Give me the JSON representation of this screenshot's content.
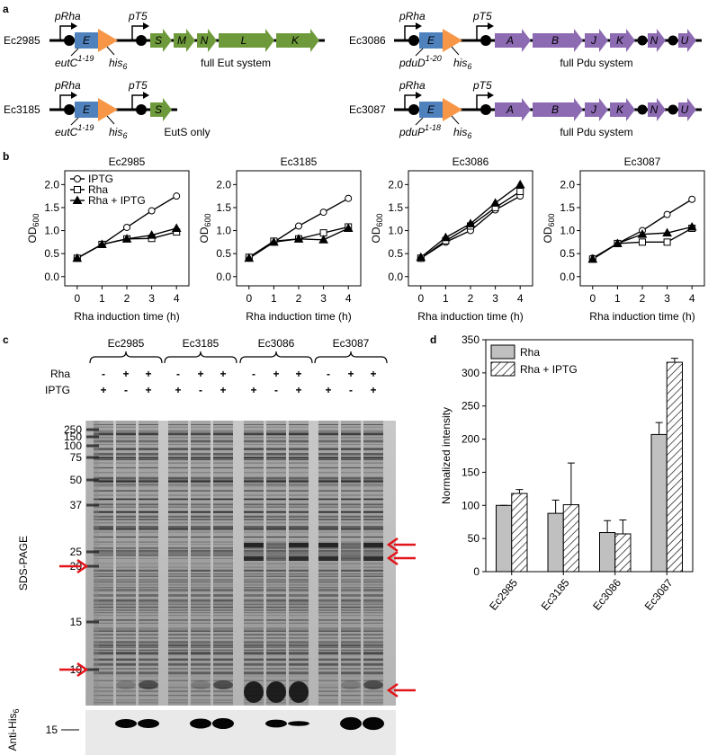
{
  "figure": {
    "panel_labels": [
      "a",
      "b",
      "c",
      "d"
    ],
    "constructs": [
      {
        "strain": "Ec2985",
        "promoter1": "pRha",
        "fusion_gene": "E",
        "fusion": "eutC",
        "fusion_sup": "1-19",
        "tag": "his",
        "tag_sub": "6",
        "promoter2": "pT5",
        "genes": [
          "S",
          "M",
          "N",
          "L",
          "K"
        ],
        "caption": "full  Eut system",
        "gene_color": "#6f9a3c"
      },
      {
        "strain": "Ec3185",
        "promoter1": "pRha",
        "fusion_gene": "E",
        "fusion": "eutC",
        "fusion_sup": "1-19",
        "tag": "his",
        "tag_sub": "6",
        "promoter2": "pT5",
        "genes": [
          "S"
        ],
        "caption": "EutS only",
        "gene_color": "#6f9a3c"
      },
      {
        "strain": "Ec3086",
        "promoter1": "pRha",
        "fusion_gene": "E",
        "fusion": "pduD",
        "fusion_sup": "1-20",
        "tag": "his",
        "tag_sub": "6",
        "promoter2": "pT5",
        "genes": [
          "A",
          "B",
          "J",
          "K",
          "N",
          "U"
        ],
        "caption": "full  Pdu system",
        "gene_color": "#8d6bb3"
      },
      {
        "strain": "Ec3087",
        "promoter1": "pRha",
        "fusion_gene": "E",
        "fusion": "pduP",
        "fusion_sup": "1-18",
        "tag": "his",
        "tag_sub": "6",
        "promoter2": "pT5",
        "genes": [
          "A",
          "B",
          "J",
          "K",
          "N",
          "U"
        ],
        "caption": "full  Pdu system",
        "gene_color": "#8d6bb3"
      }
    ]
  },
  "chart_data": [
    {
      "type": "line",
      "title": "Ec2985",
      "xlabel": "Rha induction time (h)",
      "ylabel": "OD",
      "ylabel_sub": "600",
      "legend": "upper left",
      "x": [
        0,
        1,
        2,
        3,
        4
      ],
      "xlim": [
        -0.5,
        4.5
      ],
      "xticks": [
        0,
        1,
        2,
        3,
        4
      ],
      "ylim": [
        -0.2,
        2.3
      ],
      "yticks": [
        {
          "value": 0,
          "label": "0.0"
        },
        {
          "value": 0.5,
          "label": "0.5"
        },
        {
          "value": 1,
          "label": "1.0"
        },
        {
          "value": 1.5,
          "label": "1.5"
        },
        {
          "value": 2,
          "label": "2.0"
        }
      ],
      "series": [
        {
          "name": "IPTG",
          "color": "#000000",
          "marker": "circle-open",
          "values": [
            0.4,
            0.7,
            1.07,
            1.43,
            1.75
          ]
        },
        {
          "name": "Rha",
          "color": "#000000",
          "marker": "square-open",
          "values": [
            0.4,
            0.7,
            0.82,
            0.83,
            0.97
          ]
        },
        {
          "name": "Rha + IPTG",
          "color": "#000000",
          "marker": "triangle-filled",
          "values": [
            0.4,
            0.7,
            0.82,
            0.9,
            1.05
          ]
        }
      ]
    },
    {
      "type": "line",
      "title": "Ec3185",
      "xlabel": "Rha induction time (h)",
      "ylabel": "OD",
      "ylabel_sub": "600",
      "x": [
        0,
        1,
        2,
        3,
        4
      ],
      "xlim": [
        -0.5,
        4.5
      ],
      "xticks": [
        0,
        1,
        2,
        3,
        4
      ],
      "ylim": [
        -0.2,
        2.3
      ],
      "yticks": [
        {
          "value": 0,
          "label": "0.0"
        },
        {
          "value": 0.5,
          "label": "0.5"
        },
        {
          "value": 1,
          "label": "1.0"
        },
        {
          "value": 1.5,
          "label": "1.5"
        },
        {
          "value": 2,
          "label": "2.0"
        }
      ],
      "series": [
        {
          "color": "#000000",
          "marker": "circle-open",
          "values": [
            0.4,
            0.75,
            1.1,
            1.4,
            1.7
          ]
        },
        {
          "color": "#000000",
          "marker": "square-open",
          "values": [
            0.42,
            0.77,
            0.82,
            0.95,
            1.08
          ]
        },
        {
          "color": "#000000",
          "marker": "triangle-filled",
          "values": [
            0.4,
            0.75,
            0.82,
            0.8,
            1.05
          ]
        }
      ]
    },
    {
      "type": "line",
      "title": "Ec3086",
      "xlabel": "Rha induction time (h)",
      "ylabel": "OD",
      "ylabel_sub": "600",
      "x": [
        0,
        1,
        2,
        3,
        4
      ],
      "xlim": [
        -0.5,
        4.5
      ],
      "xticks": [
        0,
        1,
        2,
        3,
        4
      ],
      "ylim": [
        -0.2,
        2.3
      ],
      "yticks": [
        {
          "value": 0,
          "label": "0.0"
        },
        {
          "value": 0.5,
          "label": "0.5"
        },
        {
          "value": 1,
          "label": "1.0"
        },
        {
          "value": 1.5,
          "label": "1.5"
        },
        {
          "value": 2,
          "label": "2.0"
        }
      ],
      "series": [
        {
          "color": "#000000",
          "marker": "circle-open",
          "values": [
            0.4,
            0.75,
            1.0,
            1.45,
            1.75
          ]
        },
        {
          "color": "#000000",
          "marker": "square-open",
          "values": [
            0.4,
            0.78,
            1.1,
            1.5,
            1.85
          ]
        },
        {
          "color": "#000000",
          "marker": "triangle-filled",
          "values": [
            0.42,
            0.85,
            1.15,
            1.6,
            2.0
          ]
        }
      ]
    },
    {
      "type": "line",
      "title": "Ec3087",
      "xlabel": "Rha induction time (h)",
      "ylabel": "OD",
      "ylabel_sub": "600",
      "x": [
        0,
        1,
        2,
        3,
        4
      ],
      "xlim": [
        -0.5,
        4.5
      ],
      "xticks": [
        0,
        1,
        2,
        3,
        4
      ],
      "ylim": [
        -0.2,
        2.3
      ],
      "yticks": [
        {
          "value": 0,
          "label": "0.0"
        },
        {
          "value": 0.5,
          "label": "0.5"
        },
        {
          "value": 1,
          "label": "1.0"
        },
        {
          "value": 1.5,
          "label": "1.5"
        },
        {
          "value": 2,
          "label": "2.0"
        }
      ],
      "series": [
        {
          "color": "#000000",
          "marker": "circle-open",
          "values": [
            0.4,
            0.72,
            1.0,
            1.35,
            1.68
          ]
        },
        {
          "color": "#000000",
          "marker": "square-open",
          "values": [
            0.38,
            0.72,
            0.75,
            0.75,
            1.05
          ]
        },
        {
          "color": "#000000",
          "marker": "triangle-filled",
          "values": [
            0.38,
            0.72,
            0.92,
            0.95,
            1.08
          ]
        }
      ]
    },
    {
      "type": "bar",
      "ylabel": "Normalized intensity",
      "legend": "upper left",
      "categories": [
        "Ec2985",
        "Ec3185",
        "Ec3086",
        "Ec3087"
      ],
      "ylim": [
        0,
        350
      ],
      "yticks": [
        0,
        50,
        100,
        150,
        200,
        250,
        300,
        350
      ],
      "series": [
        {
          "name": "Rha",
          "color": "#c0c0c0",
          "values": [
            100,
            88,
            59,
            207
          ],
          "errors": [
            0,
            20,
            18,
            18
          ]
        },
        {
          "name": "Rha + IPTG",
          "color": "#ffffff",
          "hatch": true,
          "values": [
            118,
            101,
            57,
            316
          ],
          "errors": [
            6,
            63,
            21,
            6
          ]
        }
      ]
    }
  ],
  "gel": {
    "strains": [
      "Ec2985",
      "Ec3185",
      "Ec3086",
      "Ec3087"
    ],
    "row_labels": [
      "Rha",
      "IPTG"
    ],
    "rha": [
      "-",
      "+",
      "+",
      "-",
      "+",
      "+",
      "-",
      "+",
      "+",
      "-",
      "+",
      "+"
    ],
    "iptg": [
      "+",
      "-",
      "+",
      "+",
      "-",
      "+",
      "+",
      "-",
      "+",
      "+",
      "-",
      "+"
    ],
    "marker_labels": [
      "250",
      "150",
      "100",
      "75",
      "50",
      "37",
      "25",
      "20",
      "15",
      "10"
    ],
    "side_label": "SDS-PAGE",
    "blot_label": "Anti-His",
    "blot_label_sub": "6",
    "blot_marker": "15"
  }
}
